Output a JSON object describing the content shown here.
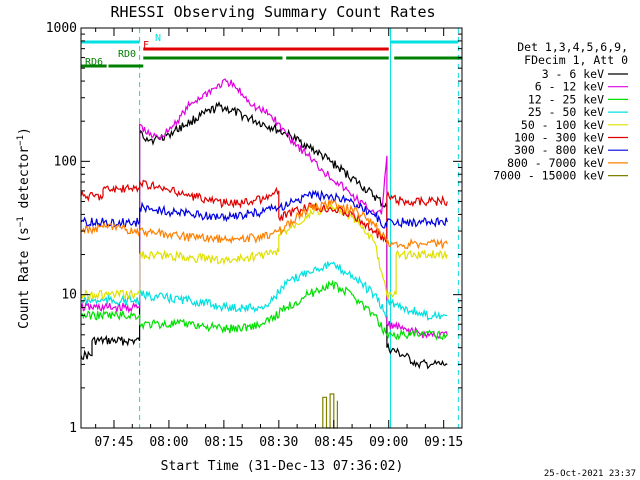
{
  "chart_data": {
    "type": "line",
    "title": "RHESSI Observing Summary Count Rates",
    "xlabel": "Start Time (31-Dec-13 07:36:02)",
    "ylabel": "Count Rate (s⁻¹ detector⁻¹)",
    "ylabel_main": "Count Rate (s",
    "ylabel_exp1": "−1",
    "ylabel_mid": " detector",
    "ylabel_exp2": "−1",
    "ylabel_close": ")",
    "y_scale": "log",
    "ylim": [
      1,
      1000
    ],
    "xlim_minutes": [
      0,
      104
    ],
    "x_ticks": [
      {
        "minute": 9,
        "label": "07:45"
      },
      {
        "minute": 24,
        "label": "08:00"
      },
      {
        "minute": 39,
        "label": "08:15"
      },
      {
        "minute": 54,
        "label": "08:30"
      },
      {
        "minute": 69,
        "label": "08:45"
      },
      {
        "minute": 84,
        "label": "09:00"
      },
      {
        "minute": 99,
        "label": "09:15"
      }
    ],
    "y_ticks": [
      {
        "value": 1,
        "label": "1"
      },
      {
        "value": 10,
        "label": "10"
      },
      {
        "value": 100,
        "label": "100"
      },
      {
        "value": 1000,
        "label": "1000"
      }
    ],
    "legend_header": [
      "Det 1,3,4,5,6,9,",
      "FDecim 1, Att 0"
    ],
    "legend_placement": "right",
    "series": [
      {
        "name": "3 - 6 keV",
        "color": "#000000",
        "x": [
          0,
          3,
          3,
          16,
          16,
          18,
          20,
          24,
          30,
          38,
          46,
          52,
          56,
          62,
          68,
          74,
          80,
          83.5,
          83.5,
          88,
          92,
          96,
          100
        ],
        "y": [
          3.5,
          3.5,
          4.5,
          4.5,
          160,
          150,
          145,
          160,
          200,
          260,
          210,
          180,
          160,
          130,
          100,
          75,
          55,
          45,
          4,
          3.5,
          3,
          3,
          3
        ]
      },
      {
        "name": "6 - 12 keV",
        "color": "#e000e0",
        "x": [
          0,
          16,
          16,
          18,
          21,
          24,
          30,
          36,
          40,
          44,
          48,
          52,
          56,
          62,
          66,
          70,
          74,
          78,
          82,
          83.5,
          83.5,
          88,
          94,
          100
        ],
        "y": [
          8,
          8,
          190,
          160,
          150,
          170,
          270,
          350,
          400,
          320,
          250,
          220,
          160,
          110,
          85,
          70,
          55,
          45,
          40,
          110,
          6,
          5.5,
          5,
          5
        ]
      },
      {
        "name": "12 - 25 keV",
        "color": "#00e000",
        "x": [
          0,
          16,
          16,
          30,
          40,
          50,
          56,
          62,
          68,
          74,
          80,
          83.5,
          83.5,
          90,
          100
        ],
        "y": [
          7,
          7,
          6,
          6,
          5.5,
          6,
          8,
          10,
          12,
          10,
          7,
          5,
          5,
          5,
          5
        ]
      },
      {
        "name": "25 - 50 keV",
        "color": "#00e0e0",
        "x": [
          0,
          16,
          16,
          30,
          40,
          50,
          56,
          62,
          68,
          74,
          80,
          83.5,
          83.5,
          88,
          94,
          100
        ],
        "y": [
          9,
          9,
          10,
          9,
          8,
          8,
          12,
          15,
          17,
          14,
          10,
          7,
          9,
          8,
          7,
          7
        ]
      },
      {
        "name": "50 - 100 keV",
        "color": "#e0e000",
        "x": [
          0,
          16,
          16,
          30,
          40,
          50,
          54,
          54,
          62,
          68,
          74,
          80,
          83.5,
          86,
          86,
          100
        ],
        "y": [
          10,
          10,
          20,
          19,
          18,
          20,
          21,
          28,
          40,
          45,
          38,
          25,
          10,
          10,
          20,
          20
        ]
      },
      {
        "name": "100 - 300 keV",
        "color": "#e00000",
        "x": [
          0,
          6,
          6,
          16,
          16,
          22,
          30,
          40,
          50,
          54,
          54,
          62,
          68,
          74,
          80,
          83.5,
          83.5,
          88,
          100
        ],
        "y": [
          55,
          55,
          62,
          62,
          70,
          62,
          55,
          48,
          52,
          60,
          38,
          45,
          45,
          40,
          30,
          25,
          55,
          50,
          50
        ]
      },
      {
        "name": "300 - 800 keV",
        "color": "#0000e0",
        "x": [
          0,
          16,
          16,
          24,
          30,
          40,
          50,
          54,
          62,
          68,
          74,
          80,
          83.5,
          83.5,
          100
        ],
        "y": [
          35,
          35,
          45,
          42,
          40,
          38,
          42,
          45,
          55,
          55,
          50,
          40,
          32,
          35,
          35
        ]
      },
      {
        "name": "800 - 7000 keV",
        "color": "#ff8000",
        "x": [
          0,
          6,
          16,
          16,
          24,
          30,
          40,
          50,
          54,
          62,
          68,
          74,
          80,
          83.5,
          83.5,
          100
        ],
        "y": [
          30,
          32,
          30,
          30,
          28,
          27,
          26,
          27,
          30,
          44,
          48,
          44,
          34,
          26,
          24,
          24
        ]
      },
      {
        "name": "7000 - 15000 keV",
        "color": "#808000",
        "x": [
          66,
          66,
          67,
          67,
          68,
          68,
          69,
          69,
          70,
          70
        ],
        "y": [
          1,
          1.7,
          1.7,
          1,
          1,
          1.8,
          1.8,
          1,
          1,
          1.6
        ]
      }
    ],
    "state_bars": [
      {
        "label": "N",
        "color": "#00e0e0",
        "segments": [
          [
            0,
            16
          ],
          [
            84.5,
            103
          ]
        ]
      },
      {
        "label": "F",
        "color": "#e00000",
        "segments": [
          [
            17,
            84
          ]
        ]
      },
      {
        "label": "RD0",
        "color": "#008000",
        "segments": [
          [
            17,
            55
          ],
          [
            56,
            84
          ],
          [
            85.5,
            104
          ]
        ]
      },
      {
        "label": "RD6",
        "color": "#008000",
        "segments": [
          [
            0,
            7
          ],
          [
            7.5,
            17
          ]
        ]
      }
    ],
    "vlines_solid_minutes": [
      0,
      84.5
    ],
    "vlines_dashed_minutes": [
      16,
      103
    ],
    "vline_color": "#00e0e0",
    "grid": false
  },
  "footer": {
    "timestamp": "25-Oct-2021 23:37"
  }
}
